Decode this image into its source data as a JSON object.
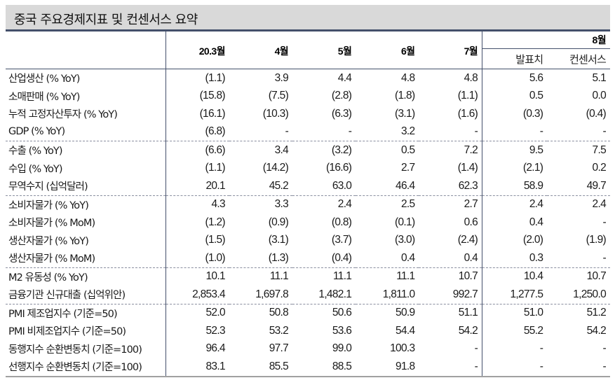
{
  "title": "중국 주요경제지표 및 컨센서스 요약",
  "header": {
    "months": [
      "20.3월",
      "4월",
      "5월",
      "6월",
      "7월"
    ],
    "group_label": "8월",
    "group_sub": [
      "발표치",
      "컨센서스"
    ]
  },
  "rows": [
    {
      "label": "산업생산 (% YoY)",
      "values": [
        "(1.1)",
        "3.9",
        "4.4",
        "4.8",
        "4.8",
        "5.6",
        "5.1"
      ],
      "group_start": false
    },
    {
      "label": "소매판매 (% YoY)",
      "values": [
        "(15.8)",
        "(7.5)",
        "(2.8)",
        "(1.8)",
        "(1.1)",
        "0.5",
        "0.0"
      ],
      "group_start": false
    },
    {
      "label": "누적 고정자산투자 (% YoY)",
      "values": [
        "(16.1)",
        "(10.3)",
        "(6.3)",
        "(3.1)",
        "(1.6)",
        "(0.3)",
        "(0.4)"
      ],
      "group_start": false
    },
    {
      "label": "GDP (% YoY)",
      "values": [
        "(6.8)",
        "-",
        "-",
        "3.2",
        "-",
        "-",
        "-"
      ],
      "group_start": false
    },
    {
      "label": "수출 (% YoY)",
      "values": [
        "(6.6)",
        "3.4",
        "(3.2)",
        "0.5",
        "7.2",
        "9.5",
        "7.5"
      ],
      "group_start": true
    },
    {
      "label": "수입 (% YoY)",
      "values": [
        "(1.1)",
        "(14.2)",
        "(16.6)",
        "2.7",
        "(1.4)",
        "(2.1)",
        "0.2"
      ],
      "group_start": false
    },
    {
      "label": "무역수지 (십억달러)",
      "values": [
        "20.1",
        "45.2",
        "63.0",
        "46.4",
        "62.3",
        "58.9",
        "49.7"
      ],
      "group_start": false
    },
    {
      "label": "소비자물가 (% YoY)",
      "values": [
        "4.3",
        "3.3",
        "2.4",
        "2.5",
        "2.7",
        "2.4",
        "2.4"
      ],
      "group_start": true
    },
    {
      "label": "소비자물가 (% MoM)",
      "values": [
        "(1.2)",
        "(0.9)",
        "(0.8)",
        "(0.1)",
        "0.6",
        "0.4",
        "-"
      ],
      "group_start": false
    },
    {
      "label": "생산자물가 (% YoY)",
      "values": [
        "(1.5)",
        "(3.1)",
        "(3.7)",
        "(3.0)",
        "(2.4)",
        "(2.0)",
        "(1.9)"
      ],
      "group_start": false
    },
    {
      "label": "생산자물가 (% MoM)",
      "values": [
        "(1.0)",
        "(1.3)",
        "(0.4)",
        "0.4",
        "0.4",
        "0.3",
        "-"
      ],
      "group_start": false
    },
    {
      "label": "M2 유동성 (% YoY)",
      "values": [
        "10.1",
        "11.1",
        "11.1",
        "11.1",
        "10.7",
        "10.4",
        "10.7"
      ],
      "group_start": true
    },
    {
      "label": "금융기관 신규대출 (십억위안)",
      "values": [
        "2,853.4",
        "1,697.8",
        "1,482.1",
        "1,811.0",
        "992.7",
        "1,277.5",
        "1,250.0"
      ],
      "group_start": false
    },
    {
      "label": "PMI 제조업지수 (기준=50)",
      "values": [
        "52.0",
        "50.8",
        "50.6",
        "50.9",
        "51.1",
        "51.0",
        "51.2"
      ],
      "group_start": true
    },
    {
      "label": "PMI 비제조업지수 (기준=50)",
      "values": [
        "52.3",
        "53.2",
        "53.6",
        "54.4",
        "54.2",
        "55.2",
        "54.2"
      ],
      "group_start": false
    },
    {
      "label": "동행지수 순환변동치 (기준=100)",
      "values": [
        "96.4",
        "97.7",
        "99.0",
        "100.3",
        "-",
        "-",
        "-"
      ],
      "group_start": false
    },
    {
      "label": "선행지수 순환변동치 (기준=100)",
      "values": [
        "83.1",
        "85.5",
        "88.5",
        "91.8",
        "-",
        "-",
        "-"
      ],
      "group_start": false
    }
  ],
  "colors": {
    "title_bg": "#d9d9d9",
    "rule": "#44506b",
    "dashed_sep": "#8a8fa0"
  }
}
